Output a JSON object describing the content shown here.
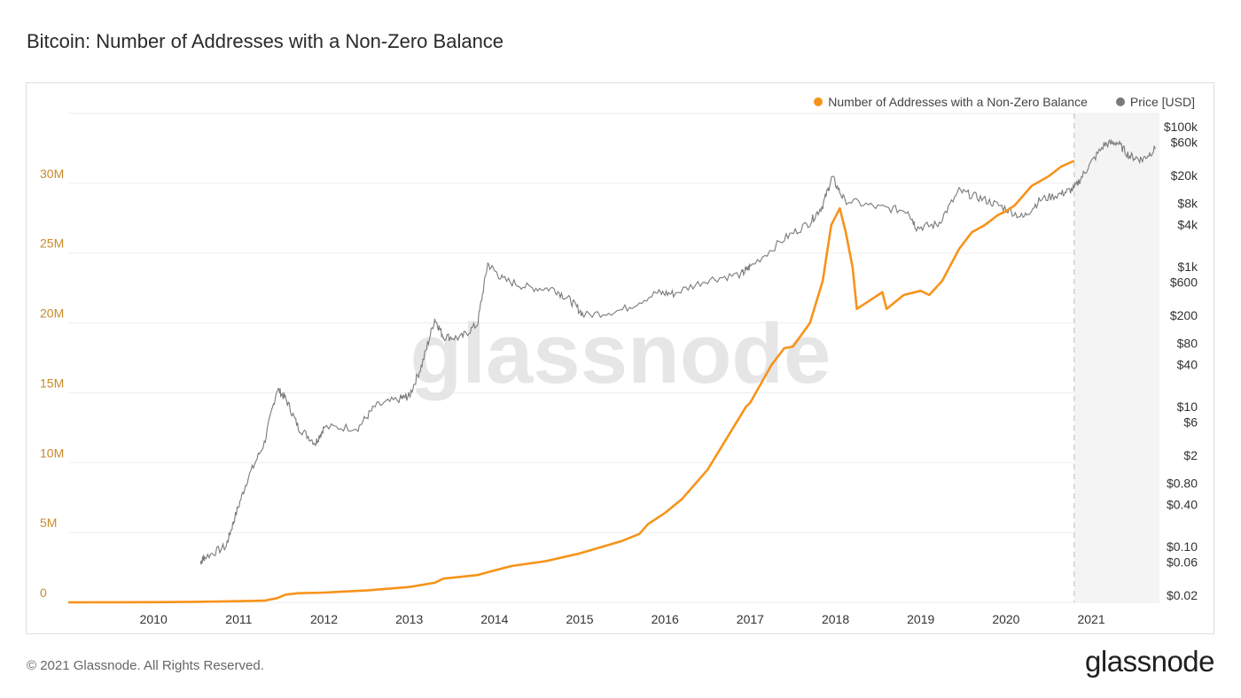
{
  "title": "Bitcoin: Number of Addresses with a Non-Zero Balance",
  "footer": {
    "copyright": "© 2021 Glassnode. All Rights Reserved.",
    "logo_text": "glassnode"
  },
  "watermark": "glassnode",
  "colors": {
    "addresses": "#f7931a",
    "price": "#7a7a7a",
    "left_axis_text": "#c98a2b",
    "grid": "#eeeeee"
  },
  "chart_data": {
    "type": "line",
    "title": "Bitcoin: Number of Addresses with a Non-Zero Balance",
    "x_ticks": [
      "2010",
      "2011",
      "2012",
      "2013",
      "2014",
      "2015",
      "2016",
      "2017",
      "2018",
      "2019",
      "2020",
      "2021"
    ],
    "x_range": [
      2009.0,
      2021.8
    ],
    "left_axis": {
      "ticks": [
        "0",
        "5M",
        "10M",
        "15M",
        "20M",
        "25M",
        "30M"
      ],
      "tick_values": [
        0,
        5000000,
        10000000,
        15000000,
        20000000,
        25000000,
        30000000
      ],
      "range": [
        0,
        35000000
      ]
    },
    "right_axis": {
      "scale": "log",
      "ticks": [
        "$100k",
        "$60k",
        "$20k",
        "$8k",
        "$4k",
        "$1k",
        "$600",
        "$200",
        "$80",
        "$40",
        "$10",
        "$6",
        "$2",
        "$0.80",
        "$0.40",
        "$0.10",
        "$0.06",
        "$0.02"
      ],
      "tick_values": [
        100000,
        60000,
        20000,
        8000,
        4000,
        1000,
        600,
        200,
        80,
        40,
        10,
        6,
        2,
        0.8,
        0.4,
        0.1,
        0.06,
        0.02
      ],
      "range": [
        0.02,
        100000
      ]
    },
    "forecast_start": 2020.8,
    "legend_position": "top-right",
    "series": [
      {
        "name": "Number of Addresses with a Non-Zero Balance",
        "axis": "left",
        "points": [
          [
            2009.0,
            0
          ],
          [
            2009.5,
            5000
          ],
          [
            2010.0,
            15000
          ],
          [
            2010.5,
            40000
          ],
          [
            2011.0,
            80000
          ],
          [
            2011.3,
            120000
          ],
          [
            2011.45,
            300000
          ],
          [
            2011.55,
            550000
          ],
          [
            2011.7,
            650000
          ],
          [
            2012.0,
            700000
          ],
          [
            2012.5,
            850000
          ],
          [
            2013.0,
            1100000
          ],
          [
            2013.3,
            1400000
          ],
          [
            2013.4,
            1700000
          ],
          [
            2013.8,
            1950000
          ],
          [
            2013.95,
            2200000
          ],
          [
            2014.2,
            2600000
          ],
          [
            2014.6,
            2950000
          ],
          [
            2015.0,
            3500000
          ],
          [
            2015.5,
            4400000
          ],
          [
            2015.7,
            4900000
          ],
          [
            2015.8,
            5600000
          ],
          [
            2016.0,
            6400000
          ],
          [
            2016.2,
            7400000
          ],
          [
            2016.5,
            9500000
          ],
          [
            2016.8,
            12500000
          ],
          [
            2016.95,
            14000000
          ],
          [
            2017.0,
            14300000
          ],
          [
            2017.25,
            17000000
          ],
          [
            2017.4,
            18200000
          ],
          [
            2017.5,
            18300000
          ],
          [
            2017.7,
            20000000
          ],
          [
            2017.85,
            23000000
          ],
          [
            2017.95,
            27000000
          ],
          [
            2018.05,
            28200000
          ],
          [
            2018.12,
            26500000
          ],
          [
            2018.2,
            24000000
          ],
          [
            2018.25,
            21000000
          ],
          [
            2018.4,
            21600000
          ],
          [
            2018.55,
            22200000
          ],
          [
            2018.6,
            21000000
          ],
          [
            2018.8,
            22000000
          ],
          [
            2019.0,
            22300000
          ],
          [
            2019.1,
            22000000
          ],
          [
            2019.25,
            23000000
          ],
          [
            2019.45,
            25300000
          ],
          [
            2019.6,
            26500000
          ],
          [
            2019.75,
            27000000
          ],
          [
            2019.9,
            27700000
          ],
          [
            2020.0,
            28000000
          ],
          [
            2020.1,
            28400000
          ],
          [
            2020.3,
            29800000
          ],
          [
            2020.5,
            30500000
          ],
          [
            2020.65,
            31200000
          ],
          [
            2020.8,
            31600000
          ]
        ]
      },
      {
        "name": "Price [USD]",
        "axis": "right",
        "points": [
          [
            2010.55,
            0.06
          ],
          [
            2010.6,
            0.07
          ],
          [
            2010.85,
            0.1
          ],
          [
            2010.95,
            0.25
          ],
          [
            2011.1,
            0.9
          ],
          [
            2011.3,
            3.0
          ],
          [
            2011.45,
            18.0
          ],
          [
            2011.55,
            13.0
          ],
          [
            2011.7,
            5.0
          ],
          [
            2011.9,
            3.0
          ],
          [
            2012.0,
            5.0
          ],
          [
            2012.4,
            5.0
          ],
          [
            2012.6,
            10.0
          ],
          [
            2012.9,
            13.0
          ],
          [
            2013.0,
            14.0
          ],
          [
            2013.15,
            40.0
          ],
          [
            2013.3,
            180.0
          ],
          [
            2013.4,
            100.0
          ],
          [
            2013.6,
            95.0
          ],
          [
            2013.8,
            150.0
          ],
          [
            2013.92,
            1100.0
          ],
          [
            2014.1,
            650.0
          ],
          [
            2014.4,
            500.0
          ],
          [
            2014.7,
            480.0
          ],
          [
            2014.9,
            320.0
          ],
          [
            2015.05,
            200.0
          ],
          [
            2015.5,
            240.0
          ],
          [
            2015.9,
            420.0
          ],
          [
            2016.1,
            410.0
          ],
          [
            2016.5,
            650.0
          ],
          [
            2016.9,
            780.0
          ],
          [
            2017.0,
            1000.0
          ],
          [
            2017.4,
            2500.0
          ],
          [
            2017.7,
            4300.0
          ],
          [
            2017.85,
            7500.0
          ],
          [
            2017.96,
            19000.0
          ],
          [
            2018.1,
            9000.0
          ],
          [
            2018.5,
            7000.0
          ],
          [
            2018.85,
            6300.0
          ],
          [
            2018.95,
            3600.0
          ],
          [
            2019.2,
            4000.0
          ],
          [
            2019.45,
            12000.0
          ],
          [
            2019.7,
            9500.0
          ],
          [
            2019.95,
            7200.0
          ],
          [
            2020.2,
            5000.0
          ],
          [
            2020.4,
            9000.0
          ],
          [
            2020.65,
            11000.0
          ],
          [
            2020.8,
            13000.0
          ],
          [
            2020.95,
            25000.0
          ],
          [
            2021.15,
            55000.0
          ],
          [
            2021.3,
            60000.0
          ],
          [
            2021.45,
            38000.0
          ],
          [
            2021.6,
            34000.0
          ],
          [
            2021.75,
            48000.0
          ]
        ]
      }
    ]
  }
}
